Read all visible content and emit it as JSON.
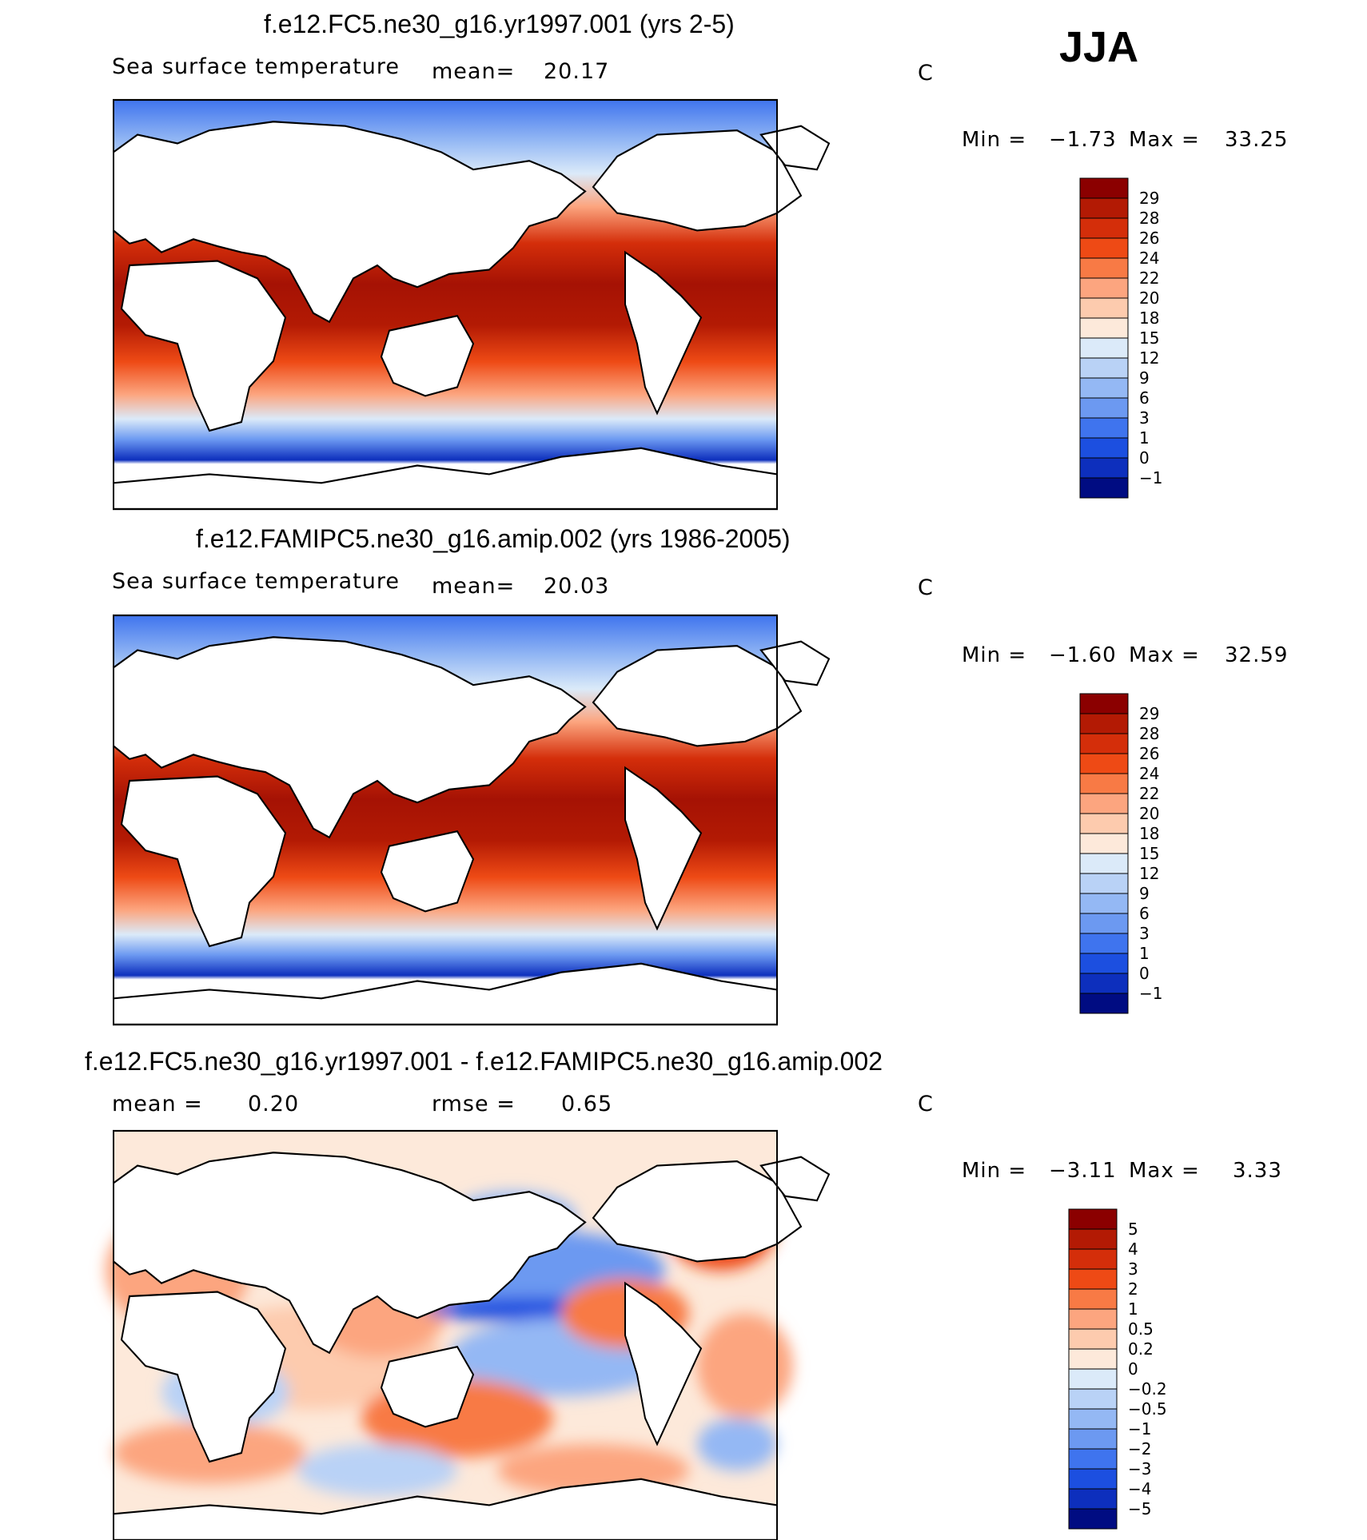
{
  "season": "JJA",
  "panels": [
    {
      "title": "f.e12.FC5.ne30_g16.yr1997.001 (yrs 2-5)",
      "variable": "Sea surface temperature",
      "stat1_label": "mean=",
      "stat1_value": "20.17",
      "units": "C",
      "min_label": "Min =",
      "min_value": "−1.73",
      "max_label": "Max =",
      "max_value": "33.25",
      "colorbar": {
        "labels": [
          "29",
          "28",
          "26",
          "24",
          "22",
          "20",
          "18",
          "15",
          "12",
          "9",
          "6",
          "3",
          "1",
          "0",
          "−1"
        ],
        "colors": [
          "#8b0000",
          "#b31a04",
          "#d42e0a",
          "#ee4a15",
          "#f87a45",
          "#fca57f",
          "#fdcbae",
          "#fde9da",
          "#dbeaf9",
          "#b9d2f6",
          "#94b8f4",
          "#6c99f1",
          "#3f74ee",
          "#1c4fe0",
          "#0d2fbd",
          "#000c82"
        ]
      }
    },
    {
      "title": "f.e12.FAMIPC5.ne30_g16.amip.002 (yrs 1986-2005)",
      "variable": "Sea surface temperature",
      "stat1_label": "mean=",
      "stat1_value": "20.03",
      "units": "C",
      "min_label": "Min =",
      "min_value": "−1.60",
      "max_label": "Max =",
      "max_value": "32.59",
      "colorbar": {
        "labels": [
          "29",
          "28",
          "26",
          "24",
          "22",
          "20",
          "18",
          "15",
          "12",
          "9",
          "6",
          "3",
          "1",
          "0",
          "−1"
        ],
        "colors": [
          "#8b0000",
          "#b31a04",
          "#d42e0a",
          "#ee4a15",
          "#f87a45",
          "#fca57f",
          "#fdcbae",
          "#fde9da",
          "#dbeaf9",
          "#b9d2f6",
          "#94b8f4",
          "#6c99f1",
          "#3f74ee",
          "#1c4fe0",
          "#0d2fbd",
          "#000c82"
        ]
      }
    },
    {
      "title": "f.e12.FC5.ne30_g16.yr1997.001 - f.e12.FAMIPC5.ne30_g16.amip.002",
      "stat1_label": "mean =",
      "stat1_value": "0.20",
      "stat2_label": "rmse =",
      "stat2_value": "0.65",
      "units": "C",
      "min_label": "Min =",
      "min_value": "−3.11",
      "max_label": "Max =",
      "max_value": "3.33",
      "colorbar": {
        "labels": [
          "5",
          "4",
          "3",
          "2",
          "1",
          "0.5",
          "0.2",
          "0",
          "−0.2",
          "−0.5",
          "−1",
          "−2",
          "−3",
          "−4",
          "−5"
        ],
        "colors": [
          "#8b0000",
          "#b31a04",
          "#d42e0a",
          "#ee4a15",
          "#f87a45",
          "#fca57f",
          "#fdcbae",
          "#fde9da",
          "#dbeaf9",
          "#b9d2f6",
          "#94b8f4",
          "#6c99f1",
          "#3f74ee",
          "#1c4fe0",
          "#0d2fbd",
          "#000c82"
        ]
      }
    }
  ]
}
